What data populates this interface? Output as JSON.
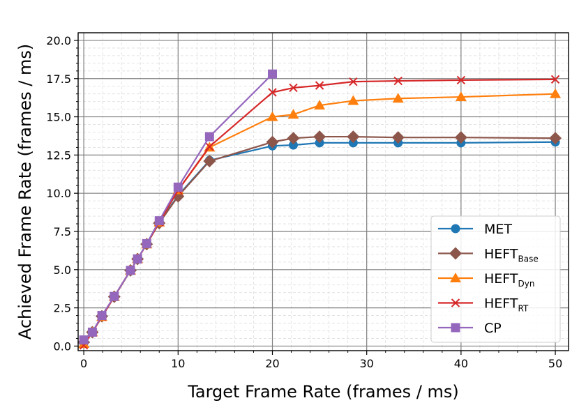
{
  "chart_data": {
    "type": "line",
    "title": "",
    "xlabel": "Target Frame Rate (frames / ms)",
    "ylabel": "Achieved Frame Rate (frames / ms)",
    "xlim": [
      -0.6,
      51.4
    ],
    "ylim": [
      -0.3,
      20.5
    ],
    "xticks": [
      0,
      10,
      20,
      30,
      40,
      50
    ],
    "yticks": [
      0.0,
      2.5,
      5.0,
      7.5,
      10.0,
      12.5,
      15.0,
      17.5,
      20.0
    ],
    "xtick_labels": [
      "0",
      "10",
      "20",
      "30",
      "40",
      "50"
    ],
    "ytick_labels": [
      "0.0",
      "2.5",
      "5.0",
      "7.5",
      "10.0",
      "12.5",
      "15.0",
      "17.5",
      "20.0"
    ],
    "grid": true,
    "legend_position": "lower-right",
    "series": [
      {
        "name": "MET",
        "name_sub": "",
        "color": "#1f77b4",
        "marker": "circle",
        "x": [
          0,
          0.91,
          1.92,
          3.23,
          4.95,
          5.7,
          6.67,
          8,
          10,
          13.33,
          20,
          22.22,
          25,
          28.57,
          33.33,
          40,
          50
        ],
        "y": [
          0.2,
          0.91,
          1.92,
          3.23,
          4.95,
          5.7,
          6.67,
          8.1,
          9.85,
          12.15,
          13.1,
          13.15,
          13.3,
          13.3,
          13.3,
          13.3,
          13.35
        ]
      },
      {
        "name": "HEFT",
        "name_sub": "Base",
        "color": "#8c564b",
        "marker": "diamond",
        "x": [
          0,
          0.91,
          1.92,
          3.23,
          4.95,
          5.7,
          6.67,
          8,
          10,
          13.33,
          20,
          22.22,
          25,
          28.57,
          33.33,
          40,
          50
        ],
        "y": [
          0.25,
          0.91,
          1.95,
          3.23,
          4.95,
          5.7,
          6.67,
          8.05,
          9.8,
          12.1,
          13.35,
          13.6,
          13.7,
          13.7,
          13.65,
          13.65,
          13.6
        ]
      },
      {
        "name": "HEFT",
        "name_sub": "Dyn",
        "color": "#ff7f0e",
        "marker": "triangle",
        "x": [
          0,
          0.91,
          1.92,
          3.23,
          4.95,
          5.7,
          6.67,
          8,
          10,
          13.33,
          20,
          22.22,
          25,
          28.57,
          33.33,
          40,
          50
        ],
        "y": [
          0.15,
          0.91,
          1.92,
          3.23,
          4.95,
          5.7,
          6.67,
          8.1,
          10.2,
          13.0,
          15.0,
          15.15,
          15.75,
          16.05,
          16.2,
          16.3,
          16.5
        ]
      },
      {
        "name": "HEFT",
        "name_sub": "RT",
        "color": "#d62728",
        "marker": "x",
        "x": [
          0,
          0.91,
          1.92,
          3.23,
          4.95,
          5.7,
          6.67,
          8,
          10,
          13.33,
          20,
          22.22,
          25,
          28.57,
          33.33,
          40,
          50
        ],
        "y": [
          0.05,
          0.91,
          1.92,
          3.23,
          4.95,
          5.7,
          6.67,
          8.1,
          10.2,
          13.05,
          16.6,
          16.9,
          17.05,
          17.3,
          17.35,
          17.4,
          17.45
        ]
      },
      {
        "name": "CP",
        "name_sub": "",
        "color": "#9467bd",
        "marker": "square",
        "x": [
          0,
          0.91,
          1.92,
          3.23,
          4.95,
          5.7,
          6.67,
          8,
          10,
          13.33,
          20
        ],
        "y": [
          0.4,
          0.91,
          2.0,
          3.25,
          4.95,
          5.7,
          6.7,
          8.2,
          10.4,
          13.7,
          17.8
        ]
      }
    ]
  }
}
